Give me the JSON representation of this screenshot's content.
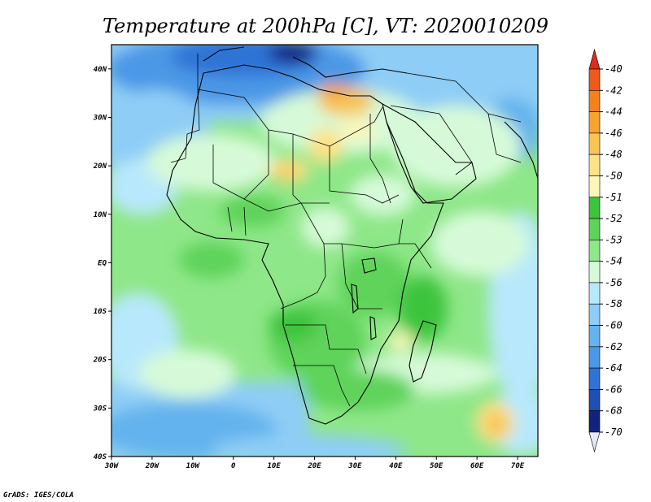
{
  "title": "Temperature at 200hPa [C], VT: 2020010209",
  "credit": "GrADS: IGES/COLA",
  "map": {
    "lon_range": [
      -30,
      75
    ],
    "lat_range": [
      -40,
      45
    ],
    "lon_ticks": [
      {
        "value": -30,
        "label": "30W"
      },
      {
        "value": -20,
        "label": "20W"
      },
      {
        "value": -10,
        "label": "10W"
      },
      {
        "value": 0,
        "label": "0"
      },
      {
        "value": 10,
        "label": "10E"
      },
      {
        "value": 20,
        "label": "20E"
      },
      {
        "value": 30,
        "label": "30E"
      },
      {
        "value": 40,
        "label": "40E"
      },
      {
        "value": 50,
        "label": "50E"
      },
      {
        "value": 60,
        "label": "60E"
      },
      {
        "value": 70,
        "label": "70E"
      }
    ],
    "lat_ticks": [
      {
        "value": 40,
        "label": "40N"
      },
      {
        "value": 30,
        "label": "30N"
      },
      {
        "value": 20,
        "label": "20N"
      },
      {
        "value": 10,
        "label": "10N"
      },
      {
        "value": 0,
        "label": "EQ"
      },
      {
        "value": -10,
        "label": "10S"
      },
      {
        "value": -20,
        "label": "20S"
      },
      {
        "value": -30,
        "label": "30S"
      },
      {
        "value": -40,
        "label": "40S"
      }
    ]
  },
  "colorbar": {
    "labels": [
      "-40",
      "-42",
      "-44",
      "-46",
      "-48",
      "-50",
      "-51",
      "-52",
      "-53",
      "-54",
      "-56",
      "-58",
      "-60",
      "-62",
      "-64",
      "-66",
      "-68",
      "-70"
    ],
    "colors": [
      "#e02a1a",
      "#ee5a1a",
      "#f3821e",
      "#f6a330",
      "#f8c454",
      "#fde286",
      "#fcf6b8",
      "#3ec43c",
      "#5ed35a",
      "#8ee788",
      "#d6fad8",
      "#b8e8fb",
      "#8ecdf5",
      "#64b3ee",
      "#4b98e6",
      "#2f73d6",
      "#1d4fb4",
      "#12237e",
      "#e6e6fa"
    ]
  },
  "field": {
    "background": "#8ee788"
  }
}
